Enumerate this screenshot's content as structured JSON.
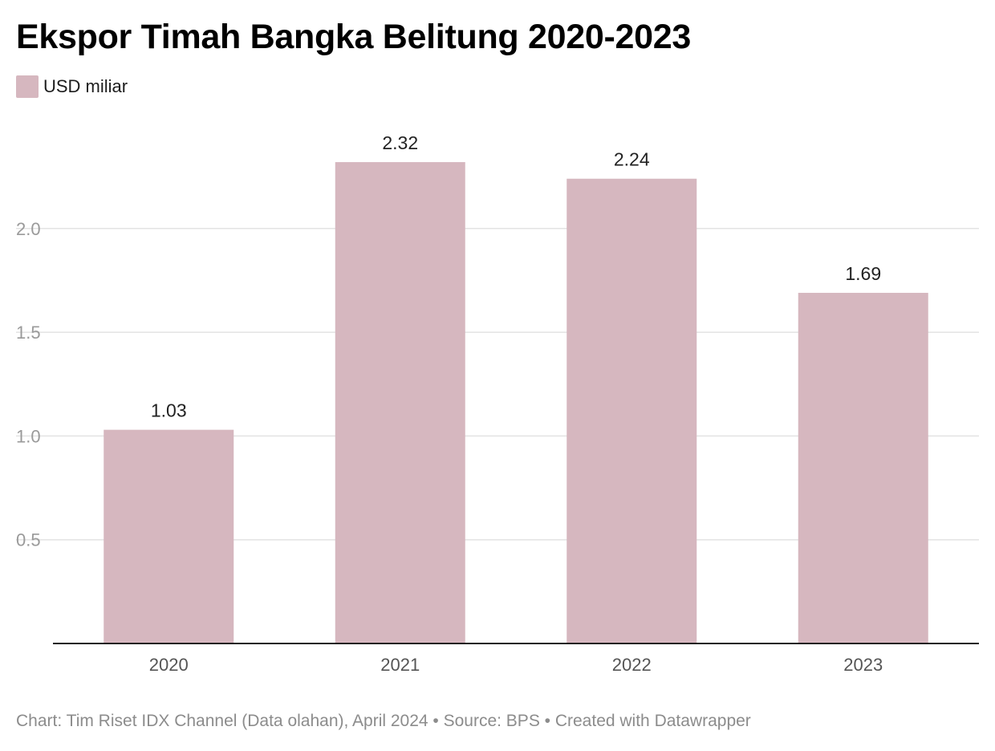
{
  "chart_data": {
    "type": "bar",
    "title": "Ekspor Timah Bangka Belitung 2020-2023",
    "legend": [
      {
        "name": "USD miliar",
        "color": "#d6b7bf"
      }
    ],
    "categories": [
      "2020",
      "2021",
      "2022",
      "2023"
    ],
    "series": [
      {
        "name": "USD miliar",
        "values": [
          1.03,
          2.32,
          2.24,
          1.69
        ],
        "color": "#d6b7bf"
      }
    ],
    "data_labels": [
      "1.03",
      "2.32",
      "2.24",
      "1.69"
    ],
    "y_ticks": [
      {
        "value": 0.5,
        "label": "0.5"
      },
      {
        "value": 1.0,
        "label": "1.0"
      },
      {
        "value": 1.5,
        "label": "1.5"
      },
      {
        "value": 2.0,
        "label": "2.0"
      }
    ],
    "ylim": [
      0,
      2.4
    ],
    "grid": true,
    "legend_position": "top-left"
  },
  "footer": {
    "text": "Chart: Tim Riset IDX Channel (Data olahan), April 2024 • Source: BPS • Created with Datawrapper"
  },
  "colors": {
    "bar": "#d6b7bf",
    "grid": "#e3e3e3",
    "axis": "#222222",
    "tick_text": "#9a9a9a",
    "category_text": "#555555",
    "label_text": "#222222"
  }
}
